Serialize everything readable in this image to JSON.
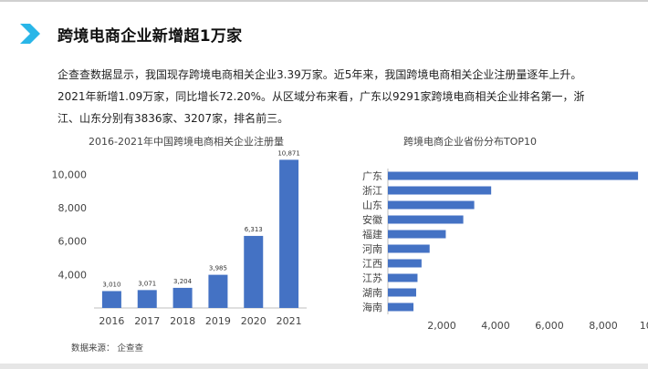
{
  "header": {
    "title": "跨境电商企业新增超1万家",
    "icon": "chevron-right-icon",
    "accent_color": "#29b6e8"
  },
  "body_text": "企查查数据显示，我国现存跨境电商相关企业3.39万家。近5年来，我国跨境电商相关企业注册量逐年上升。2021年新增1.09万家，同比增长72.20%。从区域分布来看，广东以9291家跨境电商相关企业排名第一，浙江、山东分别有3836家、3207家，排名前三。",
  "source": "数据来源：  企查查",
  "chart_data": [
    {
      "type": "bar",
      "title": "2016-2021年中国跨境电商相关企业注册量",
      "categories": [
        "2016",
        "2017",
        "2018",
        "2019",
        "2020",
        "2021"
      ],
      "values": [
        3010,
        3071,
        3204,
        3985,
        6313,
        10871
      ],
      "data_labels": [
        "3,010",
        "3,071",
        "3,204",
        "3,985",
        "6,313",
        "10,871"
      ],
      "y_ticks": [
        "4,000",
        "6,000",
        "8,000",
        "10,000"
      ],
      "y_tick_values": [
        4000,
        6000,
        8000,
        10000
      ],
      "ylim": [
        2000,
        11000
      ],
      "grid": false,
      "bar_color": "#4472c4"
    },
    {
      "type": "bar",
      "orientation": "horizontal",
      "title": "跨境电商企业省份分布TOP10",
      "categories": [
        "广东",
        "浙江",
        "山东",
        "安徽",
        "福建",
        "河南",
        "江西",
        "江苏",
        "湖南",
        "海南"
      ],
      "values": [
        9291,
        3836,
        3207,
        2800,
        2150,
        1550,
        1250,
        1100,
        1050,
        950
      ],
      "x_ticks": [
        "2,000",
        "4,000",
        "6,000",
        "8,000",
        "10,000"
      ],
      "x_tick_values": [
        2000,
        4000,
        6000,
        8000,
        10000
      ],
      "xlim": [
        0,
        10000
      ],
      "grid": false,
      "bar_color": "#4472c4"
    }
  ]
}
